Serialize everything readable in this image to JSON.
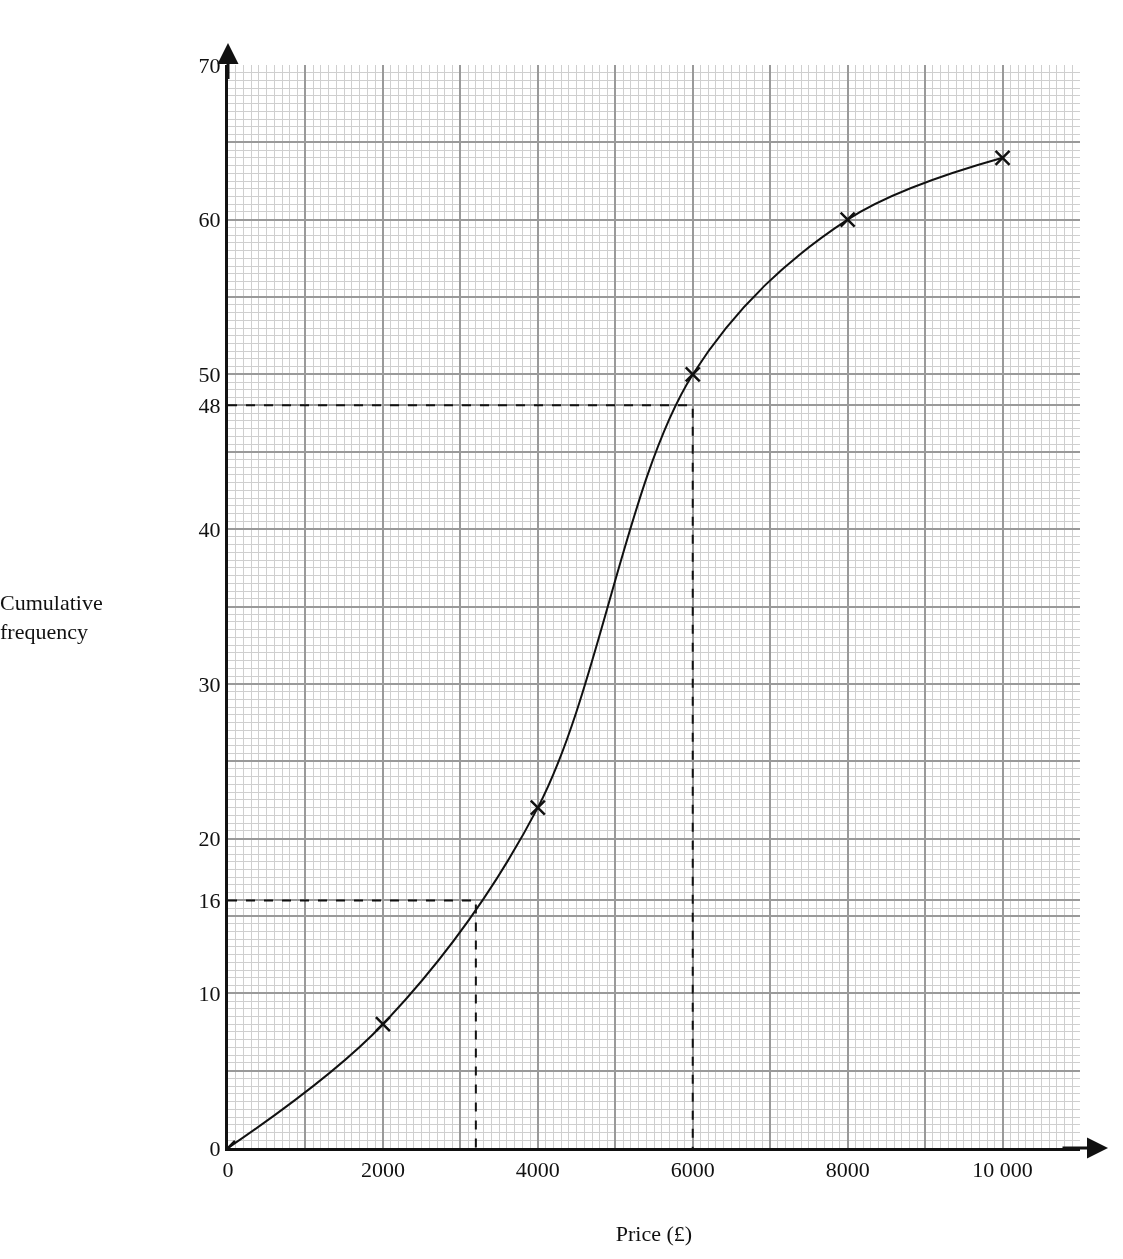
{
  "chart_data": {
    "type": "line",
    "xlabel": "Price (£)",
    "ylabel": "Cumulative frequency",
    "xlim": [
      0,
      11000
    ],
    "ylim": [
      0,
      70
    ],
    "xticks": [
      0,
      {
        "value": 1000,
        "label": null
      },
      2000,
      {
        "value": 3000,
        "label": null
      },
      4000,
      {
        "value": 5000,
        "label": null
      },
      6000,
      {
        "value": 7000,
        "label": null
      },
      8000,
      {
        "value": 9000,
        "label": null
      },
      {
        "value": 10000,
        "label": "10 000"
      }
    ],
    "yticks": [
      0,
      {
        "value": 5,
        "label": null
      },
      10,
      {
        "value": 15,
        "label": null
      },
      16,
      20,
      {
        "value": 25,
        "label": null
      },
      30,
      {
        "value": 35,
        "label": null
      },
      40,
      {
        "value": 45,
        "label": null
      },
      48,
      50,
      {
        "value": 55,
        "label": null
      },
      60,
      {
        "value": 65,
        "label": null
      },
      70
    ],
    "grid": true,
    "series": [
      {
        "x": [
          0,
          2000,
          4000,
          6000,
          8000,
          10000
        ],
        "values": [
          0,
          8,
          22,
          50,
          60,
          64
        ],
        "color": "#111111",
        "marker": "cross",
        "line_style": "solid"
      },
      {
        "x": [
          0,
          3200,
          3200
        ],
        "values": [
          16,
          16,
          0
        ],
        "color": "#111111",
        "marker": "none",
        "line_style": "dashed"
      },
      {
        "x": [
          0,
          6000,
          6000
        ],
        "values": [
          48,
          48,
          0
        ],
        "color": "#111111",
        "marker": "none",
        "line_style": "dashed"
      }
    ]
  }
}
